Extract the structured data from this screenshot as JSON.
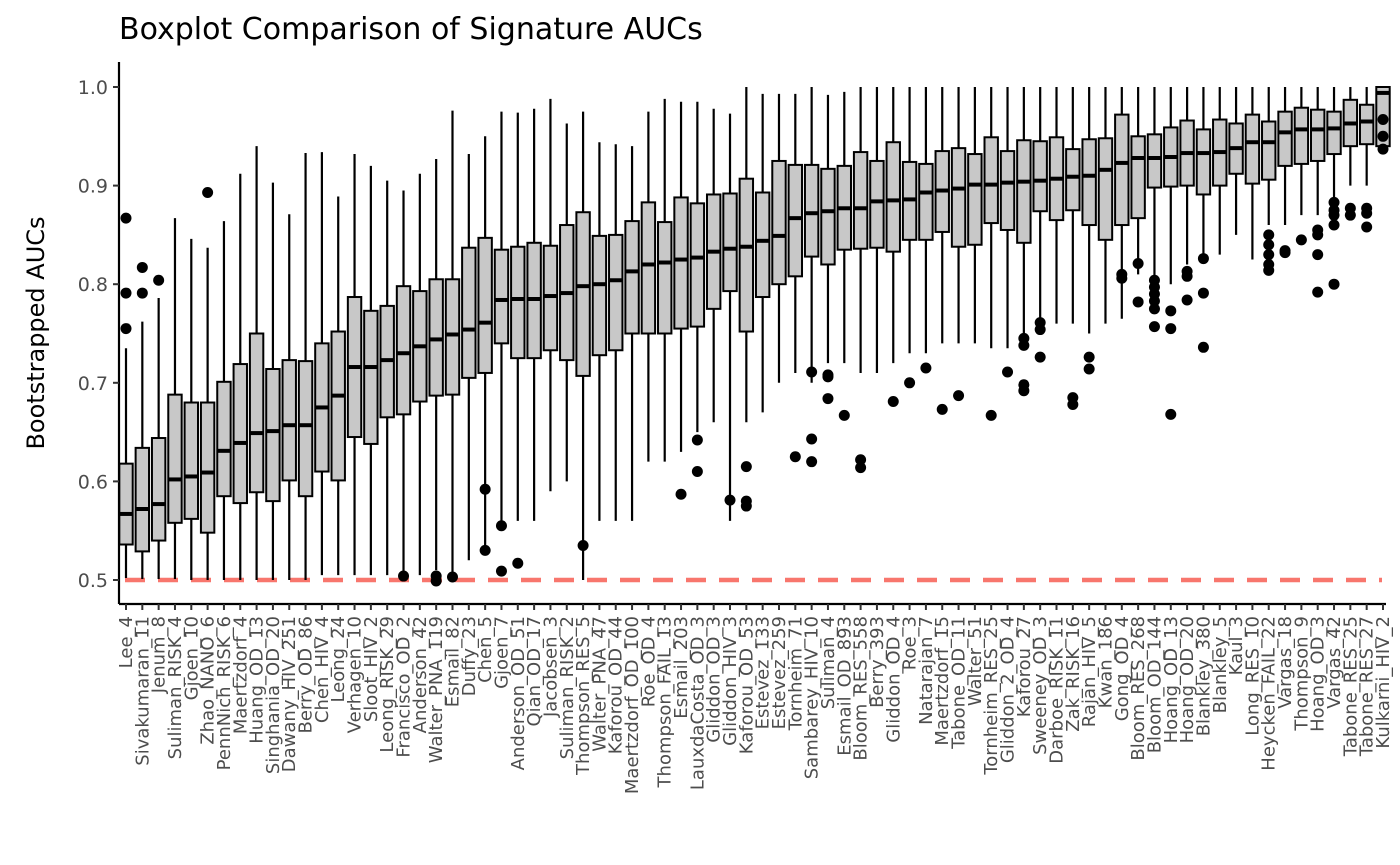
{
  "chart_data": {
    "type": "boxplot",
    "title": "Boxplot Comparison of Signature AUCs",
    "xlabel": "",
    "ylabel": "Bootstrapped AUCs",
    "ylim": [
      0.48,
      1.025
    ],
    "yticks": [
      "0.5",
      "0.6",
      "0.7",
      "0.8",
      "0.9",
      "1.0"
    ],
    "reference_line": {
      "y": 0.5,
      "color": "#F8766D",
      "style": "dashed"
    },
    "box_fill": "#C8C8C8",
    "grid": false,
    "categories": [
      "Lee_4",
      "Sivakumaran_11",
      "Jenum_8",
      "Suliman_RISK_4",
      "Gjoen_10",
      "Zhao_NANO_6",
      "PennNich_RISK_6",
      "Maertzdorf_4",
      "Huang_OD_13",
      "Singhania_OD_20",
      "Dawany_HIV_251",
      "Berry_OD_86",
      "Chen_HIV_4",
      "Leong_24",
      "Verhagen_10",
      "Sloot_HIV_2",
      "Leong_RISK_29",
      "Francisco_OD_2",
      "Anderson_42",
      "Walter_PNA_119",
      "Esmail_82",
      "Duffy_23",
      "Chen_5",
      "Gjoen_7",
      "Anderson_OD_51",
      "Qian_OD_17",
      "Jacobsen_3",
      "Suliman_RISK_2",
      "Thompson_RES_5",
      "Walter_PNA_47",
      "Kaforou_OD_44",
      "Maertzdorf_OD_100",
      "Roe_OD_4",
      "Thompson_FAIL_13",
      "Esmail_203",
      "LauxdaCosta_OD_3",
      "Gliddon_OD_3",
      "Gliddon_HIV_3",
      "Kaforou_OD_53",
      "Estevez_133",
      "Estevez_259",
      "Tornheim_71",
      "Sambarey_HIV_10",
      "Suliman_4",
      "Esmail_OD_893",
      "Bloom_RES_558",
      "Berry_393",
      "Gliddon_OD_4",
      "Roe_3",
      "Natarajan_7",
      "Maertzdorf_15",
      "Tabone_OD_11",
      "Walter_51",
      "Tornheim_RES_25",
      "Gliddon_2_OD_4",
      "Kaforou_27",
      "Sweeney_OD_3",
      "Darboe_RISK_11",
      "Zak_RISK_16",
      "Rajan_HIV_5",
      "Kwan_186",
      "Gong_OD_4",
      "Bloom_RES_268",
      "Bloom_OD_144",
      "Hoang_OD_13",
      "Hoang_OD_20",
      "Blankley_380",
      "Blankley_5",
      "Kaul_3",
      "Long_RES_10",
      "Heycken_FAIL_22",
      "Vargas_18",
      "Thompson_9",
      "Hoang_OD_3",
      "Vargas_42",
      "Tabone_RES_25",
      "Tabone_RES_27",
      "Kulkarni_HIV_2"
    ],
    "series": [
      {
        "q1": [
          0.536,
          0.529,
          0.54,
          0.558,
          0.562,
          0.548,
          0.585,
          0.578,
          0.589,
          0.58,
          0.601,
          0.585,
          0.61,
          0.601,
          0.645,
          0.638,
          0.665,
          0.668,
          0.681,
          0.687,
          0.688,
          0.705,
          0.71,
          0.74,
          0.725,
          0.725,
          0.733,
          0.723,
          0.707,
          0.728,
          0.733,
          0.75,
          0.75,
          0.75,
          0.755,
          0.757,
          0.775,
          0.793,
          0.752,
          0.787,
          0.8,
          0.808,
          0.828,
          0.82,
          0.835,
          0.836,
          0.837,
          0.833,
          0.845,
          0.845,
          0.853,
          0.838,
          0.84,
          0.862,
          0.855,
          0.842,
          0.874,
          0.865,
          0.875,
          0.86,
          0.845,
          0.86,
          0.867,
          0.898,
          0.899,
          0.9,
          0.891,
          0.9,
          0.912,
          0.902,
          0.906,
          0.92,
          0.922,
          0.925,
          0.932,
          0.94,
          0.942,
          0.94
        ],
        "median": [
          0.567,
          0.572,
          0.577,
          0.602,
          0.605,
          0.609,
          0.631,
          0.639,
          0.649,
          0.651,
          0.657,
          0.657,
          0.675,
          0.687,
          0.716,
          0.716,
          0.723,
          0.73,
          0.737,
          0.744,
          0.749,
          0.754,
          0.761,
          0.784,
          0.785,
          0.785,
          0.788,
          0.791,
          0.798,
          0.8,
          0.804,
          0.813,
          0.82,
          0.822,
          0.825,
          0.827,
          0.833,
          0.836,
          0.838,
          0.844,
          0.849,
          0.867,
          0.872,
          0.874,
          0.877,
          0.877,
          0.884,
          0.885,
          0.886,
          0.893,
          0.895,
          0.897,
          0.901,
          0.901,
          0.903,
          0.904,
          0.905,
          0.907,
          0.909,
          0.91,
          0.916,
          0.923,
          0.928,
          0.928,
          0.929,
          0.933,
          0.933,
          0.934,
          0.938,
          0.944,
          0.944,
          0.954,
          0.957,
          0.957,
          0.958,
          0.963,
          0.965,
          0.994
        ],
        "q3": [
          0.618,
          0.634,
          0.644,
          0.688,
          0.68,
          0.68,
          0.701,
          0.719,
          0.75,
          0.714,
          0.723,
          0.722,
          0.74,
          0.752,
          0.787,
          0.773,
          0.778,
          0.798,
          0.793,
          0.805,
          0.805,
          0.837,
          0.847,
          0.835,
          0.838,
          0.842,
          0.839,
          0.86,
          0.873,
          0.849,
          0.85,
          0.864,
          0.883,
          0.863,
          0.888,
          0.882,
          0.891,
          0.892,
          0.907,
          0.893,
          0.925,
          0.921,
          0.921,
          0.917,
          0.92,
          0.934,
          0.925,
          0.944,
          0.924,
          0.922,
          0.935,
          0.938,
          0.932,
          0.949,
          0.935,
          0.946,
          0.945,
          0.949,
          0.937,
          0.947,
          0.948,
          0.972,
          0.95,
          0.952,
          0.959,
          0.966,
          0.957,
          0.967,
          0.963,
          0.972,
          0.965,
          0.975,
          0.979,
          0.977,
          0.975,
          0.987,
          0.982,
          1.0
        ],
        "lo": [
          0.502,
          0.501,
          0.501,
          0.501,
          0.5,
          0.5,
          0.5,
          0.5,
          0.5,
          0.5,
          0.5,
          0.5,
          0.505,
          0.505,
          0.505,
          0.505,
          0.505,
          0.505,
          0.505,
          0.51,
          0.505,
          0.52,
          0.535,
          0.56,
          0.56,
          0.56,
          0.59,
          0.6,
          0.5,
          0.56,
          0.56,
          0.56,
          0.62,
          0.62,
          0.63,
          0.65,
          0.66,
          0.56,
          0.66,
          0.67,
          0.7,
          0.71,
          0.7,
          0.72,
          0.72,
          0.71,
          0.71,
          0.72,
          0.73,
          0.73,
          0.74,
          0.74,
          0.74,
          0.735,
          0.735,
          0.735,
          0.76,
          0.76,
          0.76,
          0.75,
          0.76,
          0.765,
          0.81,
          0.8,
          0.8,
          0.82,
          0.825,
          0.83,
          0.85,
          0.825,
          0.86,
          0.86,
          0.87,
          0.87,
          0.88,
          0.9,
          0.9,
          0.993
        ],
        "hi": [
          0.735,
          0.762,
          0.786,
          0.867,
          0.846,
          0.837,
          0.864,
          0.912,
          0.94,
          0.903,
          0.871,
          0.933,
          0.934,
          0.889,
          0.932,
          0.92,
          0.905,
          0.895,
          0.912,
          0.927,
          0.976,
          0.932,
          0.95,
          0.975,
          0.974,
          0.978,
          0.988,
          0.963,
          0.975,
          0.944,
          0.942,
          0.94,
          0.975,
          0.988,
          0.985,
          0.985,
          0.978,
          0.973,
          1.0,
          0.993,
          0.993,
          0.993,
          1.0,
          0.992,
          0.995,
          1.0,
          1.0,
          1.0,
          1.0,
          1.0,
          1.0,
          1.0,
          1.0,
          1.0,
          1.0,
          1.0,
          1.0,
          1.0,
          1.0,
          1.0,
          1.0,
          1.0,
          1.0,
          1.0,
          1.0,
          1.0,
          1.0,
          1.0,
          1.0,
          1.0,
          1.0,
          1.0,
          1.0,
          1.0,
          1.0,
          1.0,
          1.0,
          1.0
        ],
        "outliers": [
          [
            0.867,
            0.791,
            0.755
          ],
          [
            0.817,
            0.791
          ],
          [
            0.804
          ],
          [],
          [],
          [
            0.893
          ],
          [],
          [],
          [],
          [],
          [],
          [],
          [],
          [],
          [],
          [],
          [],
          [
            0.504
          ],
          [],
          [
            0.499,
            0.504
          ],
          [
            0.503
          ],
          [],
          [
            0.592,
            0.53
          ],
          [
            0.509,
            0.555
          ],
          [
            0.517
          ],
          [],
          [],
          [],
          [
            0.535
          ],
          [],
          [],
          [],
          [],
          [],
          [
            0.587
          ],
          [
            0.642,
            0.61
          ],
          [],
          [
            0.581
          ],
          [
            0.615,
            0.58,
            0.575
          ],
          [],
          [],
          [
            0.625
          ],
          [
            0.711,
            0.643,
            0.62
          ],
          [
            0.708,
            0.706,
            0.684
          ],
          [
            0.667
          ],
          [
            0.622,
            0.614
          ],
          [],
          [
            0.681
          ],
          [
            0.7
          ],
          [
            0.715
          ],
          [
            0.673
          ],
          [
            0.687
          ],
          [],
          [
            0.667
          ],
          [
            0.711
          ],
          [
            0.745,
            0.738,
            0.698,
            0.692
          ],
          [
            0.761,
            0.754,
            0.726
          ],
          [],
          [
            0.685,
            0.678
          ],
          [
            0.726,
            0.714
          ],
          [],
          [
            0.81,
            0.806
          ],
          [
            0.821,
            0.782
          ],
          [
            0.804,
            0.797,
            0.79,
            0.783,
            0.775,
            0.757
          ],
          [
            0.773,
            0.755,
            0.668
          ],
          [
            0.813,
            0.808,
            0.784
          ],
          [
            0.826,
            0.791,
            0.736
          ],
          [],
          [],
          [],
          [
            0.85,
            0.84,
            0.83,
            0.82,
            0.814
          ],
          [
            0.834,
            0.832
          ],
          [
            0.845
          ],
          [
            0.855,
            0.85,
            0.83,
            0.792
          ],
          [
            0.883,
            0.875,
            0.87,
            0.86,
            0.8
          ],
          [
            0.877,
            0.87
          ],
          [
            0.877,
            0.872,
            0.858
          ],
          [
            0.967,
            0.95,
            0.937
          ]
        ]
      }
    ]
  }
}
